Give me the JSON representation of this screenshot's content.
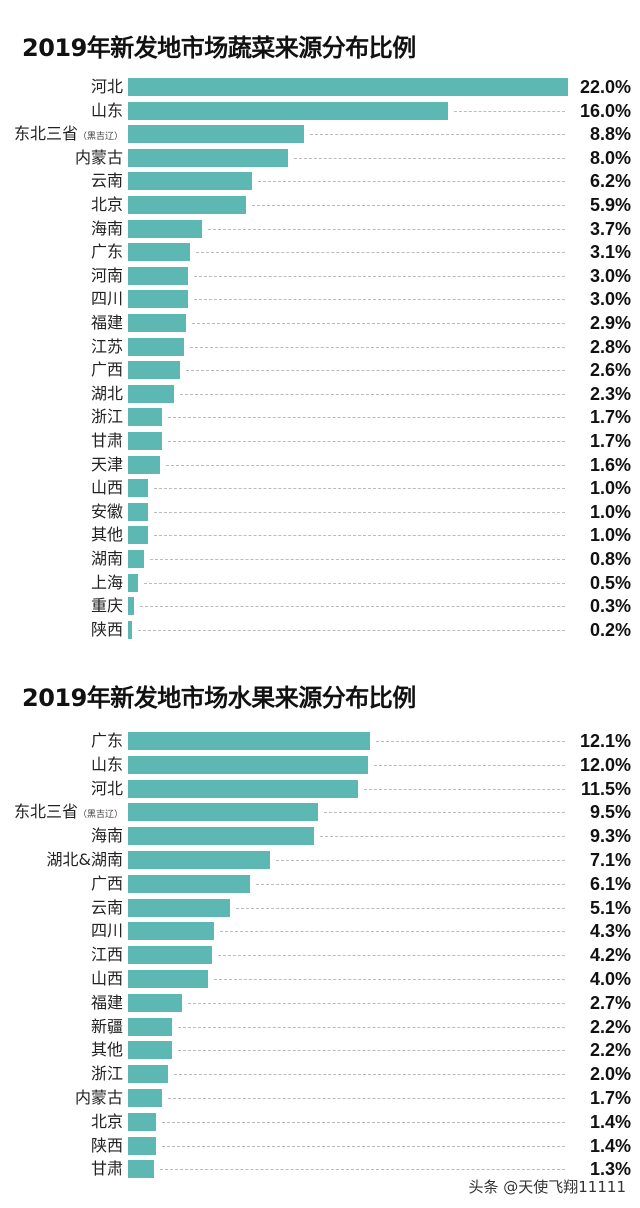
{
  "chart_data": [
    {
      "type": "bar",
      "orientation": "horizontal",
      "title": "2019年新发地市场蔬菜来源分布比例",
      "unit": "%",
      "bar_color": "#5db8b3",
      "categories": [
        "河北",
        "山东",
        "东北三省",
        "内蒙古",
        "云南",
        "北京",
        "海南",
        "广东",
        "河南",
        "四川",
        "福建",
        "江苏",
        "广西",
        "湖北",
        "浙江",
        "甘肃",
        "天津",
        "山西",
        "安徽",
        "其他",
        "湖南",
        "上海",
        "重庆",
        "陕西"
      ],
      "category_notes": {
        "东北三省": "（黑吉辽）"
      },
      "values": [
        22.0,
        16.0,
        8.8,
        8.0,
        6.2,
        5.9,
        3.7,
        3.1,
        3.0,
        3.0,
        2.9,
        2.8,
        2.6,
        2.3,
        1.7,
        1.7,
        1.6,
        1.0,
        1.0,
        1.0,
        0.8,
        0.5,
        0.3,
        0.2
      ],
      "value_labels": [
        "22.0%",
        "16.0%",
        "8.8%",
        "8.0%",
        "6.2%",
        "5.9%",
        "3.7%",
        "3.1%",
        "3.0%",
        "3.0%",
        "2.9%",
        "2.8%",
        "2.6%",
        "2.3%",
        "1.7%",
        "1.7%",
        "1.6%",
        "1.0%",
        "1.0%",
        "1.0%",
        "0.8%",
        "0.5%",
        "0.3%",
        "0.2%"
      ],
      "xlim": [
        0,
        22.0
      ]
    },
    {
      "type": "bar",
      "orientation": "horizontal",
      "title": "2019年新发地市场水果来源分布比例",
      "unit": "%",
      "bar_color": "#5db8b3",
      "categories": [
        "广东",
        "山东",
        "河北",
        "东北三省",
        "海南",
        "湖北&湖南",
        "广西",
        "云南",
        "四川",
        "江西",
        "山西",
        "福建",
        "新疆",
        "其他",
        "浙江",
        "内蒙古",
        "北京",
        "陕西",
        "甘肃"
      ],
      "category_notes": {
        "东北三省": "（黑吉辽）"
      },
      "values": [
        12.1,
        12.0,
        11.5,
        9.5,
        9.3,
        7.1,
        6.1,
        5.1,
        4.3,
        4.2,
        4.0,
        2.7,
        2.2,
        2.2,
        2.0,
        1.7,
        1.4,
        1.4,
        1.3
      ],
      "value_labels": [
        "12.1%",
        "12.0%",
        "11.5%",
        "9.5%",
        "9.3%",
        "7.1%",
        "6.1%",
        "5.1%",
        "4.3%",
        "4.2%",
        "4.0%",
        "2.7%",
        "2.2%",
        "2.2%",
        "2.0%",
        "1.7%",
        "1.4%",
        "1.4%",
        "1.3%"
      ],
      "xlim": [
        0,
        22.0
      ]
    }
  ],
  "watermark": "头条 @天使飞翔11111"
}
